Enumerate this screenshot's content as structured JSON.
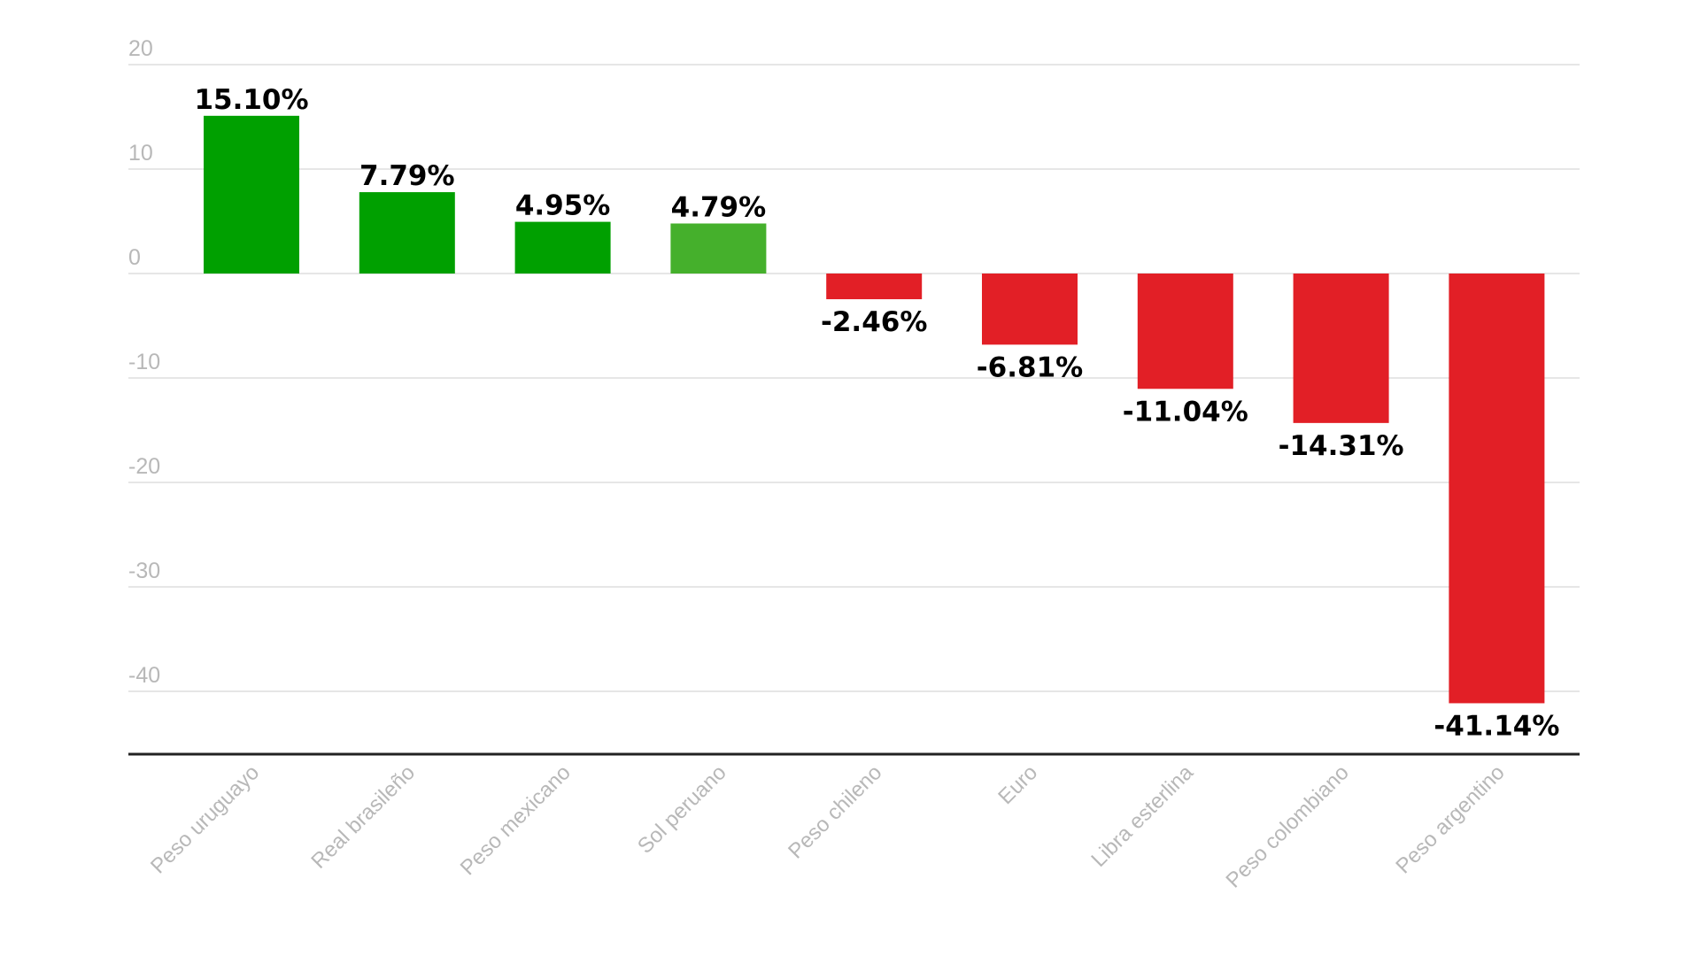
{
  "chart_data": {
    "type": "bar",
    "title": "",
    "xlabel": "",
    "ylabel": "",
    "ylim": [
      -46,
      20
    ],
    "yticks": [
      20,
      10,
      0,
      -10,
      -20,
      -30,
      -40
    ],
    "grid": true,
    "categories": [
      "Peso uruguayo",
      "Real brasileño",
      "Peso mexicano",
      "Sol peruano",
      "Peso chileno",
      "Euro",
      "Libra esterlina",
      "Peso colombiano",
      "Peso argentino"
    ],
    "values": [
      15.1,
      7.79,
      4.95,
      4.79,
      -2.46,
      -6.81,
      -11.04,
      -14.31,
      -41.14
    ],
    "data_labels": [
      "15.10%",
      "7.79%",
      "4.95%",
      "4.79%",
      "-2.46%",
      "-6.81%",
      "-11.04%",
      "-14.31%",
      "-41.14%"
    ],
    "colors": [
      "#00a000",
      "#00a000",
      "#00a000",
      "#45b02c",
      "#e21f26",
      "#e21f26",
      "#e21f26",
      "#e21f26",
      "#e21f26"
    ]
  }
}
